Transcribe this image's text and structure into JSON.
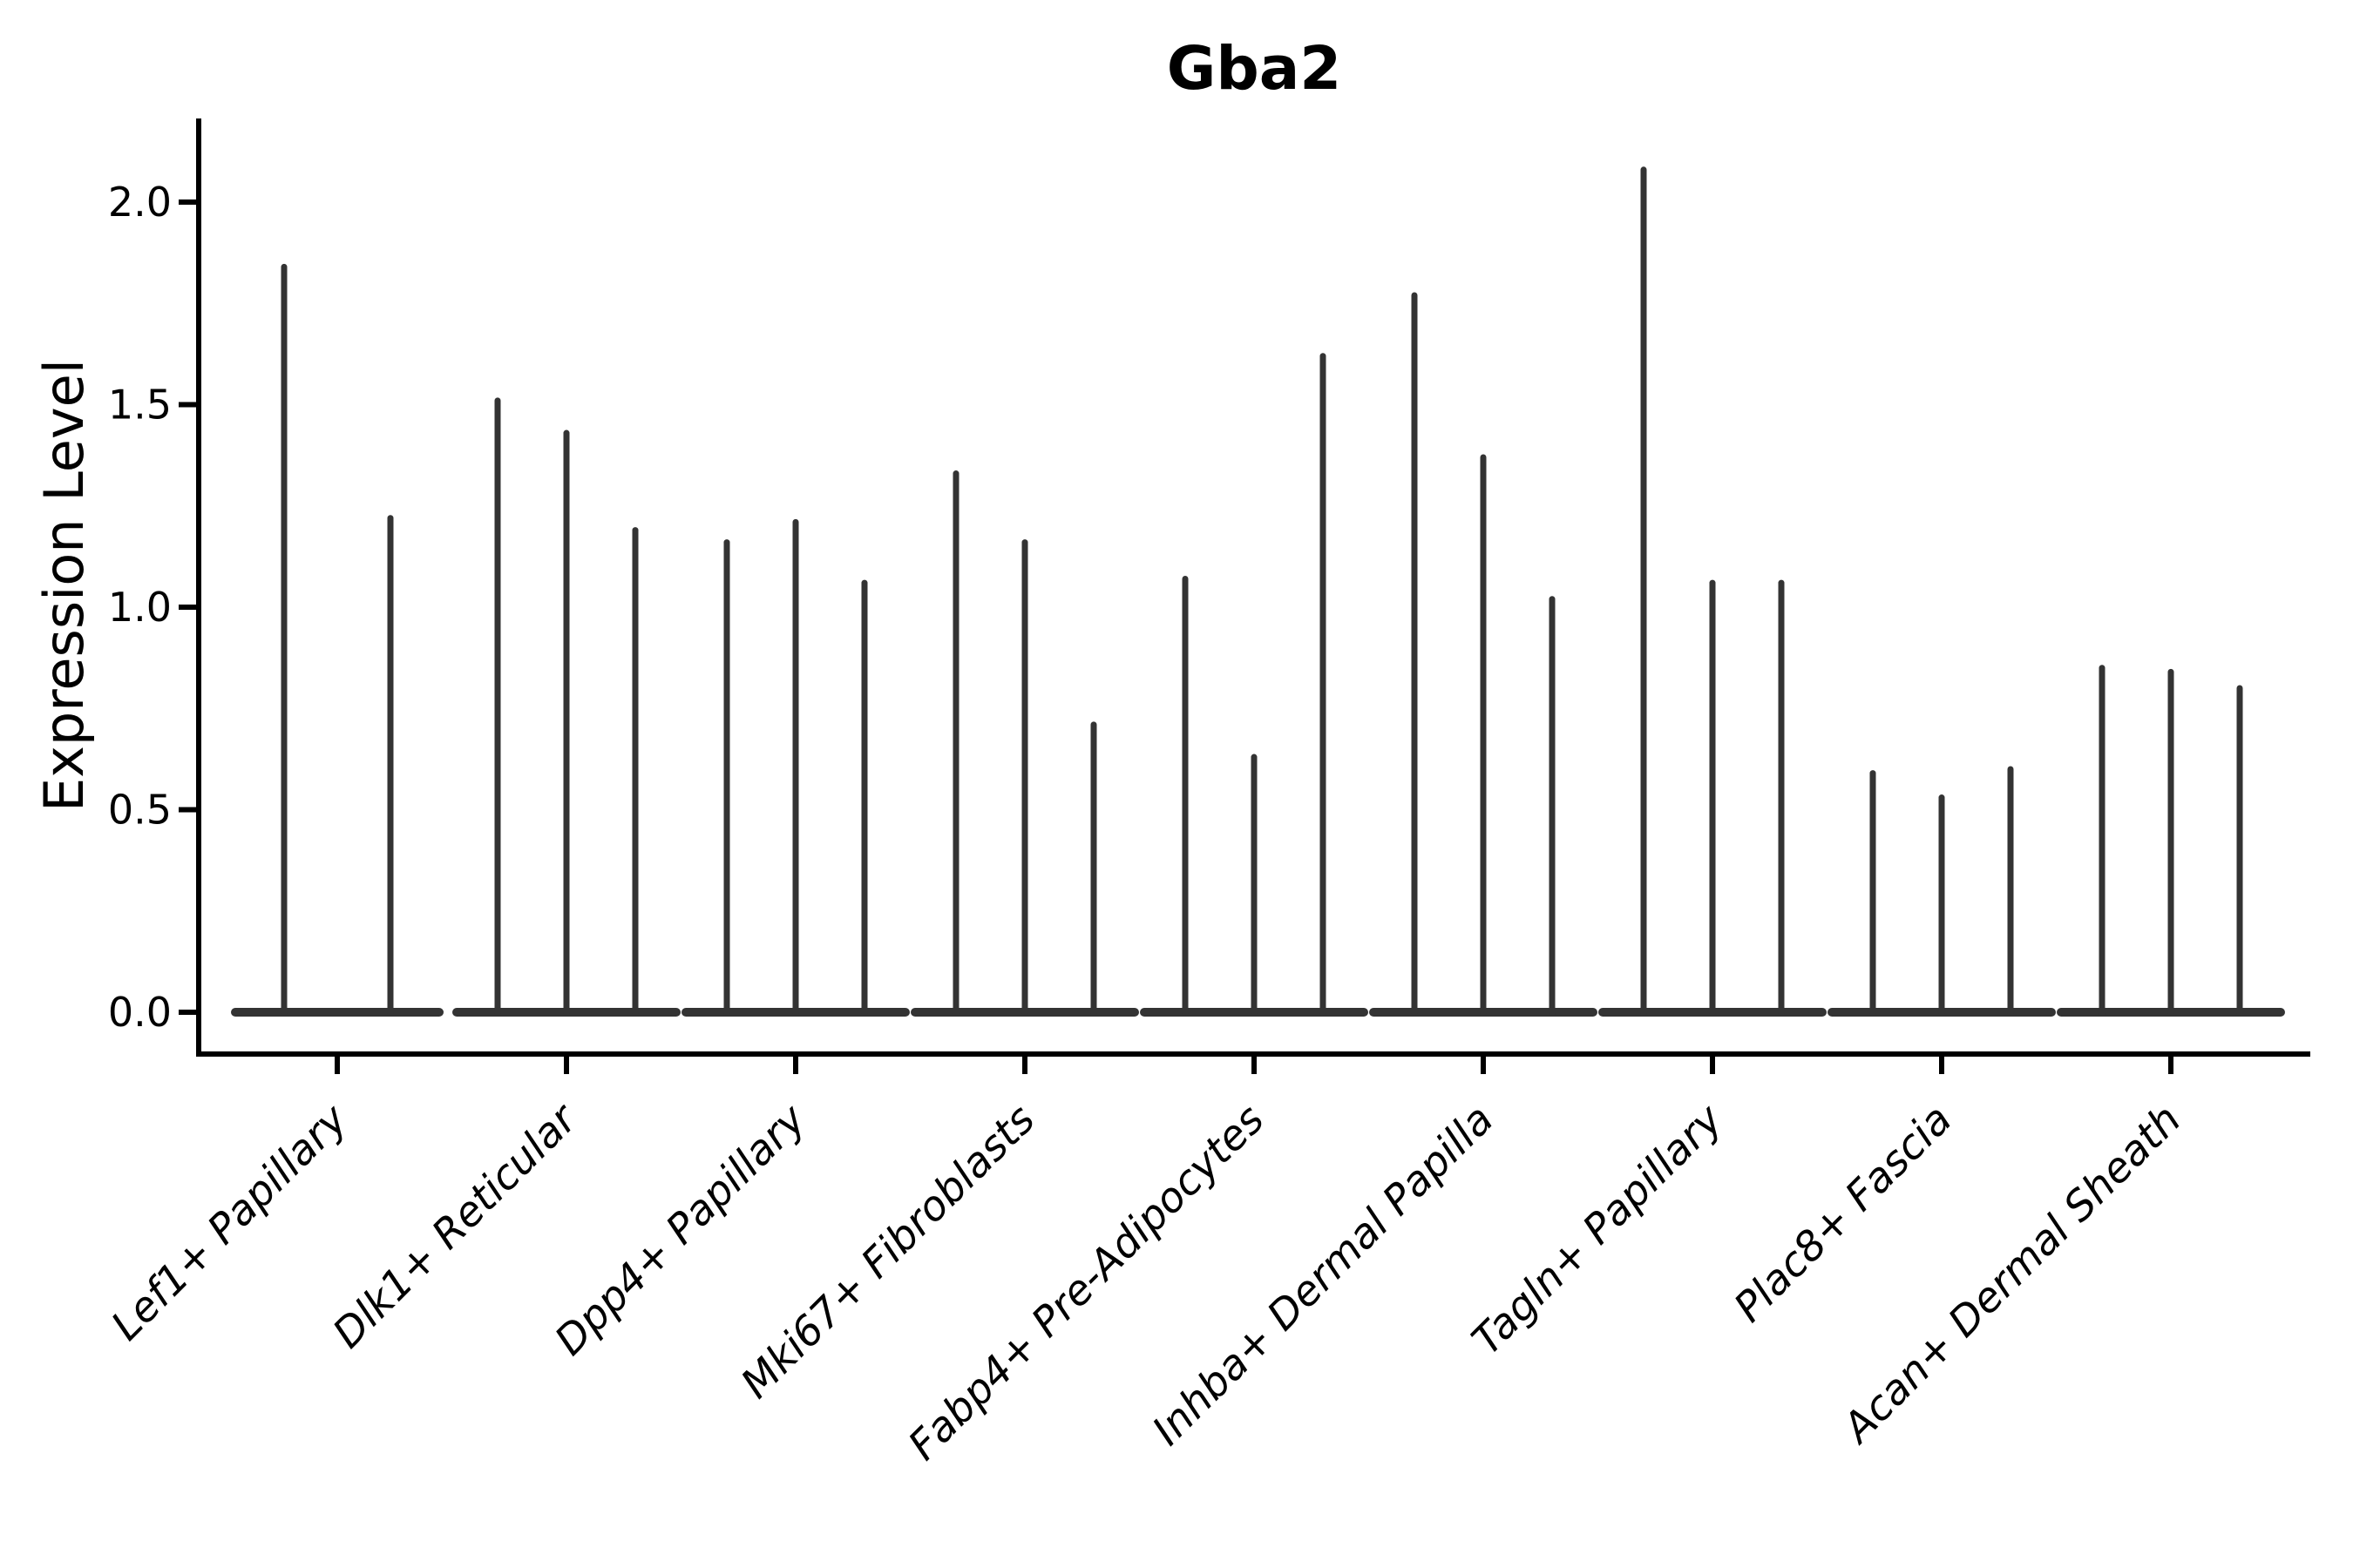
{
  "title": "Gba2",
  "colors": {
    "violin": "#333333",
    "text": "#000000",
    "background": "#ffffff"
  },
  "chart_data": {
    "type": "violin",
    "title": "Gba2",
    "xlabel": "",
    "ylabel": "Expression Level",
    "ylim": [
      -0.1,
      2.21
    ],
    "ytick_values": [
      0.0,
      0.5,
      1.0,
      1.5,
      2.0
    ],
    "ytick_labels": [
      "0.0",
      "0.5",
      "1.0",
      "1.5",
      "2.0"
    ],
    "grid": false,
    "legend": "none",
    "x_tick_label_rotation_deg": 45,
    "violin_style": "zero-collapsed violins: wide flat base at 0 with thin spikes up to each maximum",
    "categories": [
      "Lef1+ Papillary",
      "Dlk1+ Reticular",
      "Dpp4+ Papillary",
      "Mki67+ Fibroblasts",
      "Fabp4+ Pre-Adipocytes",
      "Inhba+ Dermal Papilla",
      "Tagln+ Papillary",
      "Plac8+ Fascia",
      "Acan+ Dermal Sheath"
    ],
    "series": [
      {
        "category": "Lef1+ Papillary",
        "spike_maxima": [
          1.84,
          1.22
        ]
      },
      {
        "category": "Dlk1+ Reticular",
        "spike_maxima": [
          1.51,
          1.43,
          1.19
        ]
      },
      {
        "category": "Dpp4+ Papillary",
        "spike_maxima": [
          1.16,
          1.21,
          1.06
        ]
      },
      {
        "category": "Mki67+ Fibroblasts",
        "spike_maxima": [
          1.33,
          1.16,
          0.71
        ]
      },
      {
        "category": "Fabp4+ Pre-Adipocytes",
        "spike_maxima": [
          1.07,
          0.63,
          1.62
        ]
      },
      {
        "category": "Inhba+ Dermal Papilla",
        "spike_maxima": [
          1.77,
          1.37,
          1.02
        ]
      },
      {
        "category": "Tagln+ Papillary",
        "spike_maxima": [
          2.08,
          1.06,
          1.06
        ]
      },
      {
        "category": "Plac8+ Fascia",
        "spike_maxima": [
          0.59,
          0.53,
          0.6
        ]
      },
      {
        "category": "Acan+ Dermal Sheath",
        "spike_maxima": [
          0.85,
          0.84,
          0.8
        ]
      }
    ]
  }
}
